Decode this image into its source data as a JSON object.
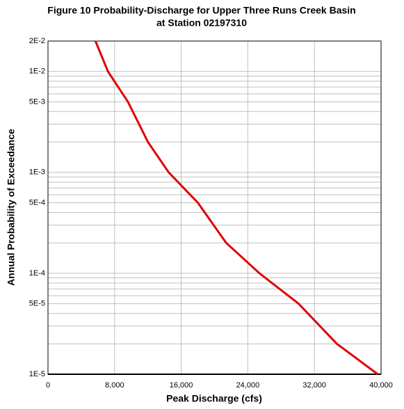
{
  "chart_data": {
    "type": "line",
    "title": [
      "Figure 10 Probability-Discharge for Upper Three Runs Creek Basin",
      "at Station 02197310"
    ],
    "x_label": "Peak Discharge (cfs)",
    "y_label": "Annual Probability of Exceedance",
    "x": [
      5700,
      7200,
      9600,
      12000,
      14500,
      18000,
      21400,
      25400,
      30100,
      34700,
      39600
    ],
    "series": [
      {
        "color": "#e00000",
        "values": [
          0.02,
          0.01,
          0.005,
          0.002,
          0.001,
          0.0005,
          0.0002,
          0.0001,
          5e-05,
          2e-05,
          1e-05
        ]
      }
    ],
    "xlim": [
      0,
      40000
    ],
    "xticks": [
      0,
      {
        "value": 8000,
        "label": "8,000"
      },
      {
        "value": 16000,
        "label": "16,000"
      },
      {
        "value": 24000,
        "label": "24,000"
      },
      {
        "value": 32000,
        "label": "32,000"
      },
      {
        "value": 40000,
        "label": "40,000"
      }
    ],
    "ylim": [
      1e-05,
      0.02
    ],
    "y_log": true,
    "yticks": [
      {
        "value": 0.02,
        "label": "2E-2"
      },
      {
        "value": 0.01,
        "label": "1E-2"
      },
      {
        "value": 0.005,
        "label": "5E-3"
      },
      {
        "value": 0.001,
        "label": "1E-3"
      },
      {
        "value": 0.0005,
        "label": "5E-4"
      },
      {
        "value": 0.0001,
        "label": "1E-4"
      },
      {
        "value": 5e-05,
        "label": "5E-5"
      },
      {
        "value": 1e-05,
        "label": "1E-5"
      }
    ],
    "y_minor_grid": [
      0.009,
      0.008,
      0.007,
      0.006,
      0.004,
      0.003,
      0.002,
      0.0009,
      0.0008,
      0.0007,
      0.0006,
      0.0004,
      0.0003,
      0.0002,
      9e-05,
      8e-05,
      7e-05,
      6e-05,
      4e-05,
      3e-05,
      2e-05
    ],
    "grid": true
  }
}
